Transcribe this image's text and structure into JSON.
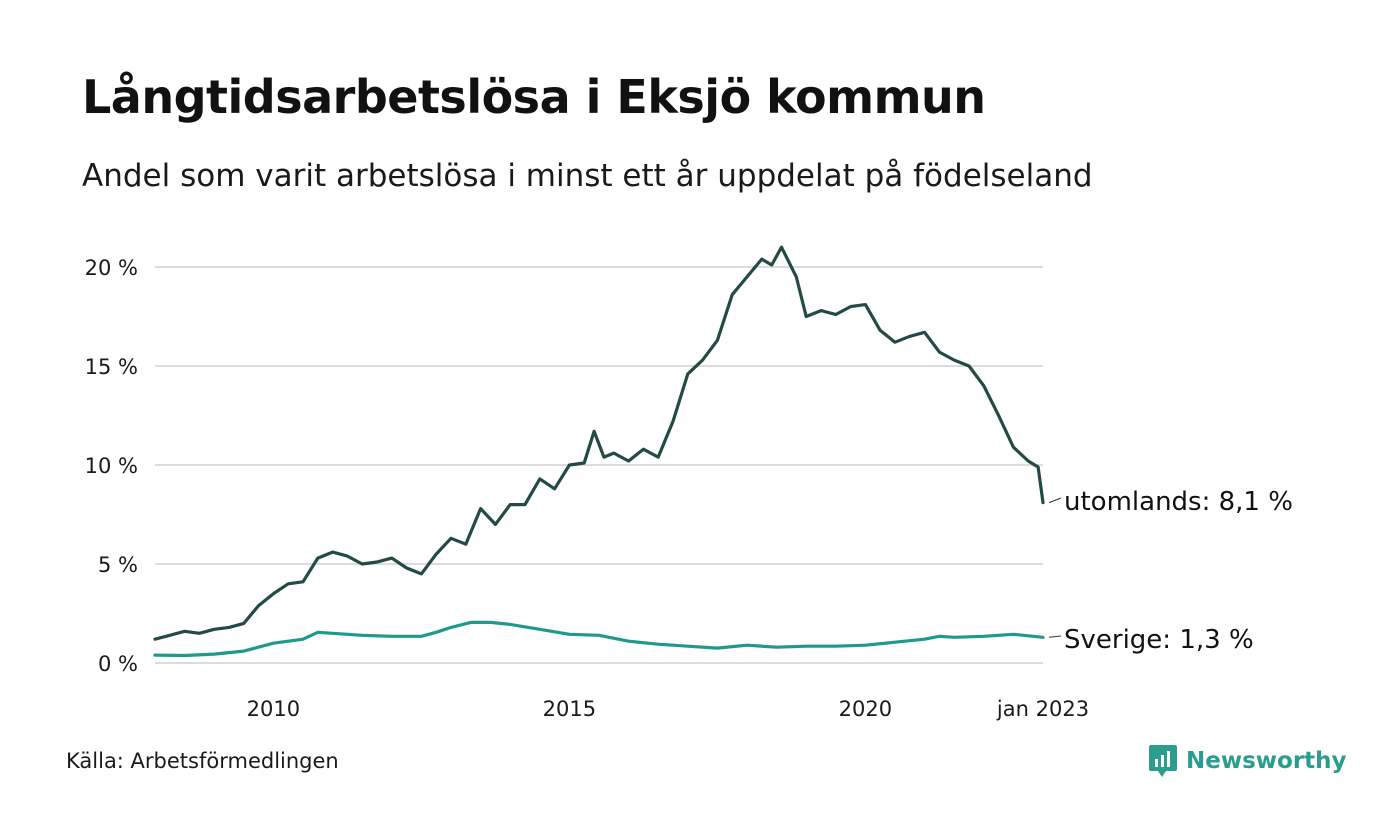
{
  "title": "Långtidsarbetslösa i Eksjö kommun",
  "subtitle": "Andel som varit arbetslösa i minst ett år uppdelat på födelseland",
  "source": "Källa: Arbetsförmedlingen",
  "brand": "Newsworthy",
  "colors": {
    "utomlands": "#234a45",
    "sverige": "#1f9a8a",
    "grid": "#dcdcdc",
    "brand": "#2a9d8f"
  },
  "chart_data": {
    "type": "line",
    "x_start": "2008-01",
    "x_end": "2023-01",
    "x_ticks": [
      {
        "label": "2010",
        "x": "2010-01"
      },
      {
        "label": "2015",
        "x": "2015-01"
      },
      {
        "label": "2020",
        "x": "2020-01"
      },
      {
        "label": "jan 2023",
        "x": "2023-01"
      }
    ],
    "y_ticks": [
      {
        "label": "0 %",
        "value": 0
      },
      {
        "label": "5 %",
        "value": 5
      },
      {
        "label": "10 %",
        "value": 10
      },
      {
        "label": "15 %",
        "value": 15
      },
      {
        "label": "20 %",
        "value": 20
      }
    ],
    "ylim": [
      0,
      20
    ],
    "grid": true,
    "series": [
      {
        "name": "utomlands",
        "end_label": "utomlands: 8,1 %",
        "color": "#234a45",
        "points": [
          [
            "2008-01",
            1.2
          ],
          [
            "2008-04",
            1.4
          ],
          [
            "2008-07",
            1.6
          ],
          [
            "2008-10",
            1.5
          ],
          [
            "2009-01",
            1.7
          ],
          [
            "2009-04",
            1.8
          ],
          [
            "2009-07",
            2.0
          ],
          [
            "2009-10",
            2.9
          ],
          [
            "2010-01",
            3.5
          ],
          [
            "2010-04",
            4.0
          ],
          [
            "2010-07",
            4.1
          ],
          [
            "2010-10",
            5.3
          ],
          [
            "2011-01",
            5.6
          ],
          [
            "2011-04",
            5.4
          ],
          [
            "2011-07",
            5.0
          ],
          [
            "2011-10",
            5.1
          ],
          [
            "2012-01",
            5.3
          ],
          [
            "2012-04",
            4.8
          ],
          [
            "2012-07",
            4.5
          ],
          [
            "2012-10",
            5.5
          ],
          [
            "2013-01",
            6.3
          ],
          [
            "2013-04",
            6.0
          ],
          [
            "2013-07",
            7.8
          ],
          [
            "2013-10",
            7.0
          ],
          [
            "2014-01",
            8.0
          ],
          [
            "2014-04",
            8.0
          ],
          [
            "2014-07",
            9.3
          ],
          [
            "2014-10",
            8.8
          ],
          [
            "2015-01",
            10.0
          ],
          [
            "2015-04",
            10.1
          ],
          [
            "2015-06",
            11.7
          ],
          [
            "2015-08",
            10.4
          ],
          [
            "2015-10",
            10.6
          ],
          [
            "2016-01",
            10.2
          ],
          [
            "2016-04",
            10.8
          ],
          [
            "2016-07",
            10.4
          ],
          [
            "2016-10",
            12.2
          ],
          [
            "2017-01",
            14.6
          ],
          [
            "2017-04",
            15.3
          ],
          [
            "2017-07",
            16.3
          ],
          [
            "2017-10",
            18.6
          ],
          [
            "2018-01",
            19.5
          ],
          [
            "2018-04",
            20.4
          ],
          [
            "2018-06",
            20.1
          ],
          [
            "2018-08",
            21.0
          ],
          [
            "2018-11",
            19.5
          ],
          [
            "2019-01",
            17.5
          ],
          [
            "2019-04",
            17.8
          ],
          [
            "2019-07",
            17.6
          ],
          [
            "2019-10",
            18.0
          ],
          [
            "2020-01",
            18.1
          ],
          [
            "2020-04",
            16.8
          ],
          [
            "2020-07",
            16.2
          ],
          [
            "2020-10",
            16.5
          ],
          [
            "2021-01",
            16.7
          ],
          [
            "2021-04",
            15.7
          ],
          [
            "2021-07",
            15.3
          ],
          [
            "2021-10",
            15.0
          ],
          [
            "2022-01",
            14.0
          ],
          [
            "2022-04",
            12.5
          ],
          [
            "2022-07",
            10.9
          ],
          [
            "2022-10",
            10.2
          ],
          [
            "2022-12",
            9.9
          ],
          [
            "2023-01",
            8.1
          ]
        ]
      },
      {
        "name": "Sverige",
        "end_label": "Sverige: 1,3 %",
        "color": "#1f9a8a",
        "points": [
          [
            "2008-01",
            0.4
          ],
          [
            "2008-07",
            0.38
          ],
          [
            "2009-01",
            0.45
          ],
          [
            "2009-07",
            0.6
          ],
          [
            "2010-01",
            1.0
          ],
          [
            "2010-07",
            1.2
          ],
          [
            "2010-10",
            1.55
          ],
          [
            "2011-01",
            1.5
          ],
          [
            "2011-07",
            1.4
          ],
          [
            "2012-01",
            1.35
          ],
          [
            "2012-07",
            1.35
          ],
          [
            "2012-10",
            1.55
          ],
          [
            "2013-01",
            1.8
          ],
          [
            "2013-05",
            2.05
          ],
          [
            "2013-09",
            2.05
          ],
          [
            "2014-01",
            1.95
          ],
          [
            "2014-07",
            1.7
          ],
          [
            "2015-01",
            1.45
          ],
          [
            "2015-07",
            1.4
          ],
          [
            "2016-01",
            1.1
          ],
          [
            "2016-07",
            0.95
          ],
          [
            "2017-01",
            0.85
          ],
          [
            "2017-07",
            0.75
          ],
          [
            "2018-01",
            0.9
          ],
          [
            "2018-07",
            0.8
          ],
          [
            "2019-01",
            0.85
          ],
          [
            "2019-07",
            0.85
          ],
          [
            "2020-01",
            0.9
          ],
          [
            "2020-07",
            1.05
          ],
          [
            "2021-01",
            1.2
          ],
          [
            "2021-04",
            1.35
          ],
          [
            "2021-07",
            1.3
          ],
          [
            "2022-01",
            1.35
          ],
          [
            "2022-07",
            1.45
          ],
          [
            "2023-01",
            1.3
          ]
        ]
      }
    ]
  }
}
